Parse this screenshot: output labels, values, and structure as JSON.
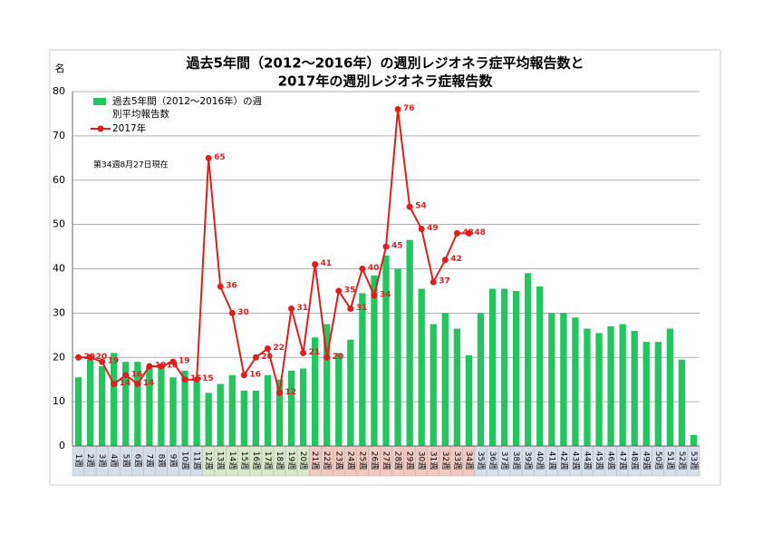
{
  "chart_data": {
    "type": "bar_line",
    "title_lines": [
      "過去5年間（2012～2016年）の週別レジオネラ症平均報告数と",
      "2017年の週別レジオネラ症報告数"
    ],
    "y_label": "名",
    "annotation": "第34週8月27日現在",
    "categories": [
      "1週",
      "2週",
      "3週",
      "4週",
      "5週",
      "6週",
      "7週",
      "8週",
      "9週",
      "10週",
      "11週",
      "12週",
      "13週",
      "14週",
      "15週",
      "16週",
      "17週",
      "18週",
      "19週",
      "20週",
      "21週",
      "22週",
      "23週",
      "24週",
      "25週",
      "26週",
      "27週",
      "28週",
      "29週",
      "30週",
      "31週",
      "32週",
      "33週",
      "34週",
      "35週",
      "36週",
      "37週",
      "38週",
      "39週",
      "40週",
      "41週",
      "42週",
      "43週",
      "44週",
      "45週",
      "46週",
      "47週",
      "48週",
      "49週",
      "50週",
      "51週",
      "52週",
      "53週"
    ],
    "series": [
      {
        "name": "過去5年間（2012～2016年）の週別平均報告数",
        "color": "#22c55e",
        "kind": "bar",
        "values": [
          15.5,
          19.5,
          18,
          21,
          19,
          19,
          18,
          18.5,
          15.5,
          17,
          14.5,
          12,
          14,
          16,
          12.5,
          12.5,
          16,
          15,
          17,
          17.5,
          24.5,
          27.5,
          21,
          24,
          34.5,
          38.5,
          43,
          40,
          46.5,
          35.5,
          27.5,
          30,
          26.5,
          20.5,
          30,
          35.5,
          35.5,
          35,
          39,
          36,
          30,
          30,
          29,
          26.5,
          25.5,
          27,
          27.5,
          26,
          23.5,
          23.5,
          26.5,
          19.5,
          2.5
        ]
      },
      {
        "name": "2017年",
        "color": "#e11d1d",
        "kind": "line",
        "values": [
          20,
          20,
          19,
          14,
          16,
          14,
          18,
          18,
          19,
          15,
          15,
          65,
          36,
          30,
          16,
          20,
          22,
          12,
          31,
          21,
          41,
          20,
          35,
          31,
          40,
          34,
          45,
          76,
          54,
          49,
          37,
          42,
          48,
          48,
          null,
          null,
          null,
          null,
          null,
          null,
          null,
          null,
          null,
          null,
          null,
          null,
          null,
          null,
          null,
          null,
          null,
          null,
          null
        ]
      }
    ],
    "ylim": [
      0,
      80
    ],
    "yticks": [
      0,
      10,
      20,
      30,
      40,
      50,
      60,
      70,
      80
    ],
    "grid": true
  }
}
